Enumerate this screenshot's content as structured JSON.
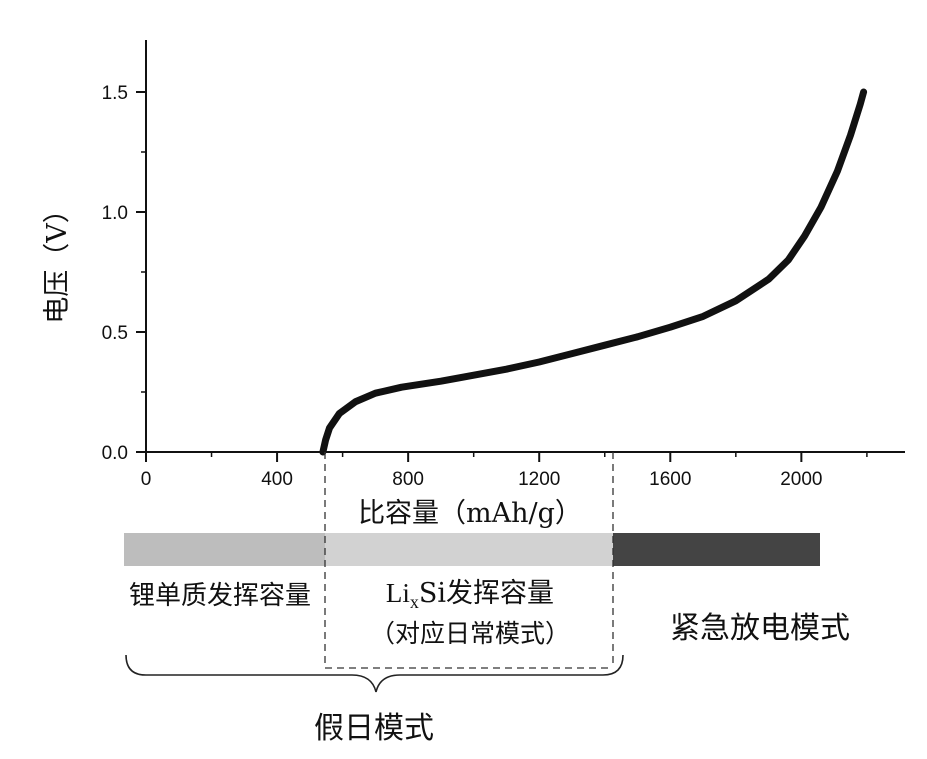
{
  "chart_data": {
    "type": "line",
    "ylabel": "电压（V）",
    "xlabel": "比容量（mAh/g）",
    "xlim": [
      0,
      2320
    ],
    "ylim": [
      0,
      1.7
    ],
    "x_ticks": [
      "0",
      "400",
      "800",
      "1200",
      "1600",
      "2000"
    ],
    "y_ticks": [
      "0.0",
      "0.5",
      "1.0",
      "1.5"
    ],
    "grid": false,
    "series": [
      {
        "values": [
          {
            "x": 540,
            "y": 0.0
          },
          {
            "x": 548,
            "y": 0.05
          },
          {
            "x": 560,
            "y": 0.1
          },
          {
            "x": 590,
            "y": 0.16
          },
          {
            "x": 640,
            "y": 0.21
          },
          {
            "x": 700,
            "y": 0.245
          },
          {
            "x": 780,
            "y": 0.27
          },
          {
            "x": 900,
            "y": 0.295
          },
          {
            "x": 1000,
            "y": 0.32
          },
          {
            "x": 1100,
            "y": 0.345
          },
          {
            "x": 1200,
            "y": 0.375
          },
          {
            "x": 1300,
            "y": 0.41
          },
          {
            "x": 1400,
            "y": 0.445
          },
          {
            "x": 1500,
            "y": 0.48
          },
          {
            "x": 1600,
            "y": 0.52
          },
          {
            "x": 1700,
            "y": 0.565
          },
          {
            "x": 1800,
            "y": 0.63
          },
          {
            "x": 1900,
            "y": 0.72
          },
          {
            "x": 1960,
            "y": 0.8
          },
          {
            "x": 2010,
            "y": 0.9
          },
          {
            "x": 2060,
            "y": 1.02
          },
          {
            "x": 2110,
            "y": 1.17
          },
          {
            "x": 2150,
            "y": 1.32
          },
          {
            "x": 2180,
            "y": 1.45
          },
          {
            "x": 2190,
            "y": 1.5
          }
        ]
      }
    ]
  },
  "regions": {
    "colors": {
      "lithium": "#bdbdbd",
      "lixsi": "#d2d2d2",
      "emergency": "#444444"
    },
    "labels": {
      "lithium": "锂单质发挥容量",
      "lixsi_prefix": "Li",
      "lixsi_sub": "x",
      "lixsi_suffix": "Si发挥容量",
      "daily_mode": "（对应日常模式）",
      "emergency": "紧急放电模式",
      "holiday": "假日模式"
    }
  }
}
